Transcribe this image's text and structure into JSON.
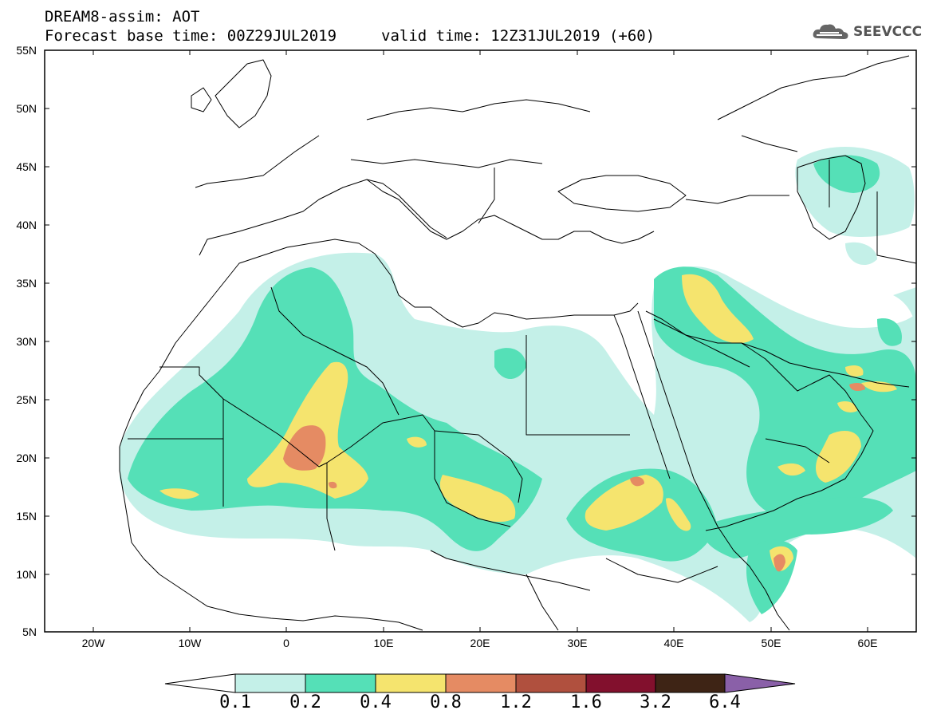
{
  "header": {
    "title_line1": "DREAM8-assim: AOT",
    "base_time": "Forecast base time: 00Z29JUL2019",
    "valid_time": "valid time: 12Z31JUL2019 (+60)"
  },
  "logo": {
    "text": "SEEVCCC",
    "icon": "cloud-icon"
  },
  "map": {
    "lat_labels": [
      "55N",
      "50N",
      "45N",
      "40N",
      "35N",
      "30N",
      "25N",
      "20N",
      "15N",
      "10N",
      "5N"
    ],
    "lon_labels": [
      "20W",
      "10W",
      "0",
      "10E",
      "20E",
      "30E",
      "40E",
      "50E",
      "60E"
    ],
    "extent": {
      "lon_min": -25,
      "lon_max": 65,
      "lat_min": 5,
      "lat_max": 55
    }
  },
  "colorbar": {
    "labels": [
      "0.1",
      "0.2",
      "0.4",
      "0.8",
      "1.2",
      "1.6",
      "3.2",
      "6.4"
    ],
    "colors": [
      "#ffffff",
      "#c4f0e8",
      "#55e0b7",
      "#f5e46e",
      "#e58b63",
      "#b0503e",
      "#82102d",
      "#3e2415",
      "#8a60a8"
    ]
  }
}
